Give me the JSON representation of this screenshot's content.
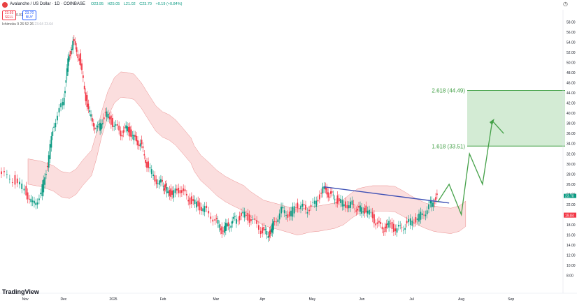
{
  "header": {
    "title": "Avalanche / US Dollar · 1D · COINBASE",
    "ohlc": [
      "O23.95",
      "H25.05",
      "L21.02",
      "C23.70",
      "+0.19 (+0.84%)"
    ],
    "sell_price": "23.69",
    "sell_label": "SELL",
    "buy_price": "23.70",
    "buy_label": "BUY",
    "spread": "0.01",
    "indicator": "Ichimoku 9 26 52 26",
    "indicator_values": [
      "23.64",
      "23.64"
    ],
    "logo_text": "TradingView"
  },
  "colors": {
    "up": "#089981",
    "down": "#f23645",
    "cloud_bull": "#a5d6a7",
    "cloud_bear": "#f8c8c8",
    "trendline": "#3f51b5",
    "target_box": "#c8e6c9",
    "projection": "#43a047"
  },
  "chart_data": {
    "type": "line",
    "title": "",
    "xlabel": "",
    "ylabel": "",
    "ylim": [
      7,
      59
    ],
    "x_ticks": [
      "Nov",
      "Dec",
      "2025",
      "Feb",
      "Mar",
      "Apr",
      "May",
      "Jun",
      "Jul",
      "Aug",
      "Sep"
    ],
    "y_ticks": [
      "58.00",
      "56.00",
      "54.00",
      "52.00",
      "50.00",
      "48.00",
      "46.00",
      "44.00",
      "42.00",
      "40.00",
      "38.00",
      "36.00",
      "34.00",
      "32.00",
      "30.00",
      "28.00",
      "26.00",
      "24.00",
      "22.00",
      "20.00",
      "18.00",
      "16.00",
      "14.00",
      "12.00",
      "10.00",
      "8.00"
    ],
    "price_labels": [
      {
        "text": "23.70",
        "value": 23.7,
        "color": "#089981"
      },
      {
        "text": "19.99",
        "value": 19.99,
        "color": "#f23645"
      },
      {
        "text": "19.84",
        "value": 19.84,
        "color": "#f23645"
      }
    ],
    "series": [
      {
        "name": "AVAXUSD",
        "x": [
          "Oct 23",
          "Nov 1",
          "Nov 8",
          "Nov 13",
          "Nov 18",
          "Nov 22",
          "Nov 26",
          "Dec 1",
          "Dec 4",
          "Dec 7",
          "Dec 11",
          "Dec 15",
          "Dec 19",
          "Dec 23",
          "Dec 27",
          "Jan 1",
          "Jan 6",
          "Jan 10",
          "Jan 14",
          "Jan 18",
          "Jan 22",
          "Jan 27",
          "Feb 1",
          "Feb 3",
          "Feb 7",
          "Feb 12",
          "Feb 17",
          "Feb 22",
          "Feb 27",
          "Mar 3",
          "Mar 7",
          "Mar 11",
          "Mar 15",
          "Mar 20",
          "Mar 25",
          "Mar 31",
          "Apr 5",
          "Apr 8",
          "Apr 13",
          "Apr 18",
          "Apr 23",
          "Apr 28",
          "May 3",
          "May 8",
          "May 12",
          "May 16",
          "May 21",
          "May 26",
          "May 30",
          "Jun 4",
          "Jun 9",
          "Jun 14",
          "Jun 18",
          "Jun 23",
          "Jun 28",
          "Jul 3",
          "Jul 8",
          "Jul 13",
          "Jul 17"
        ],
        "values": [
          28,
          27,
          25,
          22,
          24,
          30,
          38,
          42,
          50,
          54,
          51,
          43,
          38,
          37,
          40,
          38,
          36,
          37,
          35,
          34,
          30,
          27,
          26,
          25,
          24,
          25,
          23,
          22,
          21,
          19,
          17,
          18,
          19,
          20,
          19,
          17,
          16,
          18,
          21,
          20,
          22,
          21,
          22,
          25,
          24,
          23,
          22,
          22,
          21,
          21,
          19,
          17,
          18,
          17,
          18,
          19,
          20,
          22,
          23.7
        ]
      },
      {
        "name": "Trendline",
        "x": [
          "May 8",
          "Jul 24"
        ],
        "values": [
          25.5,
          22.3
        ]
      },
      {
        "name": "Projection",
        "x": [
          "Jul 17",
          "Jul 24",
          "Aug 1",
          "Aug 6",
          "Aug 14",
          "Aug 20",
          "Aug 27"
        ],
        "values": [
          22.5,
          26,
          20,
          32,
          26,
          38.5,
          36
        ]
      }
    ],
    "levels": [
      {
        "label": "2.618 (44.49)",
        "value": 44.49
      },
      {
        "label": "1.618 (33.51)",
        "value": 33.51
      }
    ]
  }
}
